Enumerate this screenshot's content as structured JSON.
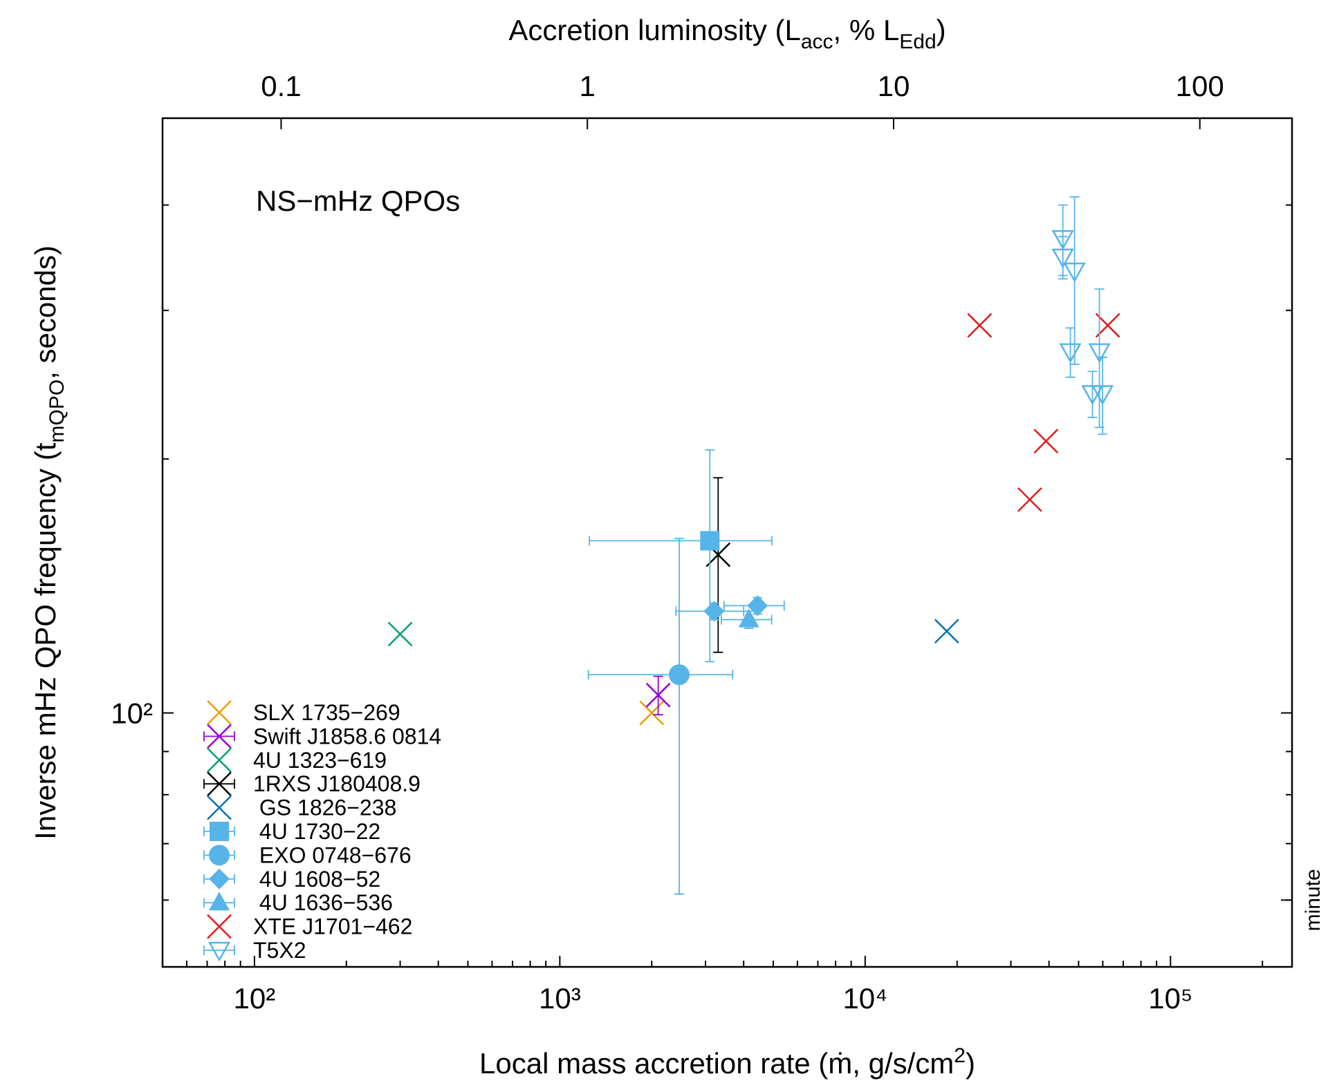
{
  "chart_data": {
    "type": "scatter",
    "annotation": "NS−mHz QPOs",
    "xlabel": {
      "parts": [
        "Local mass accretion rate (ṁ, g/s/cm",
        "2",
        ")"
      ],
      "script": "sup"
    },
    "x2label": {
      "parts": [
        "Accretion luminosity (L",
        "acc",
        ", % L",
        "Edd",
        ")"
      ],
      "script": "sub"
    },
    "ylabel": {
      "parts": [
        "Inverse mHz QPO frequency (t",
        "mQPO",
        ", seconds)"
      ],
      "script": "sub"
    },
    "xscale": "log",
    "yscale": "log",
    "x2scale": "log",
    "xlim": [
      50,
      250000
    ],
    "xticks": [
      {
        "value": 100,
        "label": "10²"
      },
      {
        "value": 1000,
        "label": "10³"
      },
      {
        "value": 10000,
        "label": "10⁴"
      },
      {
        "value": 100000,
        "label": "10⁵"
      }
    ],
    "xminor_ticks": [
      60,
      70,
      80,
      90,
      200,
      300,
      400,
      500,
      600,
      700,
      800,
      900,
      2000,
      3000,
      4000,
      5000,
      6000,
      7000,
      8000,
      9000,
      20000,
      30000,
      40000,
      50000,
      60000,
      70000,
      80000,
      90000,
      200000
    ],
    "x2lim": [
      0.041,
      200
    ],
    "x2ticks": [
      0.1,
      1,
      10,
      100
    ],
    "ylim": [
      50,
      507
    ],
    "yticks": [
      {
        "value": 100,
        "label": "10²"
      }
    ],
    "yminor_ticks": [
      60,
      70,
      80,
      90,
      200,
      300,
      400
    ],
    "y2ticks": [
      {
        "value": 60,
        "label": "minute"
      }
    ],
    "legend": "lower left",
    "series": [
      {
        "name": "SLX 1735−269",
        "color": "#e69f00",
        "marker": "cross",
        "x": [
          2000
        ],
        "values": [
          100
        ]
      },
      {
        "name": "Swift J1858.6 0814",
        "color": "#9400d3",
        "marker": "cross",
        "x": [
          2100
        ],
        "values": [
          105
        ],
        "yerr": [
          5.5
        ]
      },
      {
        "name": "4U 1323−619",
        "color": "#009e73",
        "marker": "cross",
        "x": [
          300
        ],
        "values": [
          124
        ]
      },
      {
        "name": "1RXS J180408.9",
        "color": "#000000",
        "marker": "cross",
        "x": [
          3300
        ],
        "values": [
          154
        ],
        "yerr": [
          36
        ]
      },
      {
        "name": " GS 1826−238",
        "color": "#0072b2",
        "marker": "cross",
        "x": [
          18500
        ],
        "values": [
          125
        ]
      },
      {
        "name": " 4U 1730−22",
        "color": "#56b4e9",
        "marker": "square",
        "x": [
          3100
        ],
        "values": [
          160
        ],
        "xerr": [
          1850
        ],
        "yerr": [
          45
        ]
      },
      {
        "name": " EXO 0748−676",
        "color": "#56b4e9",
        "marker": "circle",
        "x": [
          2460
        ],
        "values": [
          111
        ],
        "xerr": [
          1220
        ],
        "yerr": [
          50
        ]
      },
      {
        "name": " 4U 1608−52",
        "color": "#56b4e9",
        "marker": "diamond",
        "x": [
          3200,
          4440
        ],
        "values": [
          132,
          134
        ],
        "xerr": [
          800,
          990
        ],
        "yerr": [
          3,
          3
        ]
      },
      {
        "name": " 4U 1636−536",
        "color": "#56b4e9",
        "marker": "triangle",
        "x": [
          4160
        ],
        "values": [
          129
        ],
        "xerr": [
          780
        ],
        "yerr": [
          3
        ]
      },
      {
        "name": "XTE J1701−462",
        "color": "#e41a1c",
        "marker": "cross",
        "x": [
          23700,
          62300,
          39100,
          34600
        ],
        "values": [
          288,
          288,
          210,
          179
        ]
      },
      {
        "name": "T5X2",
        "color": "#56b4e9",
        "marker": "tri-down-open",
        "x": [
          44400,
          44400,
          48500,
          47000,
          58500,
          55500,
          59900
        ],
        "values": [
          365,
          347,
          334,
          268,
          268,
          239,
          239
        ],
        "yerr": [
          35,
          20,
          75,
          18,
          50,
          15,
          25
        ]
      }
    ]
  }
}
